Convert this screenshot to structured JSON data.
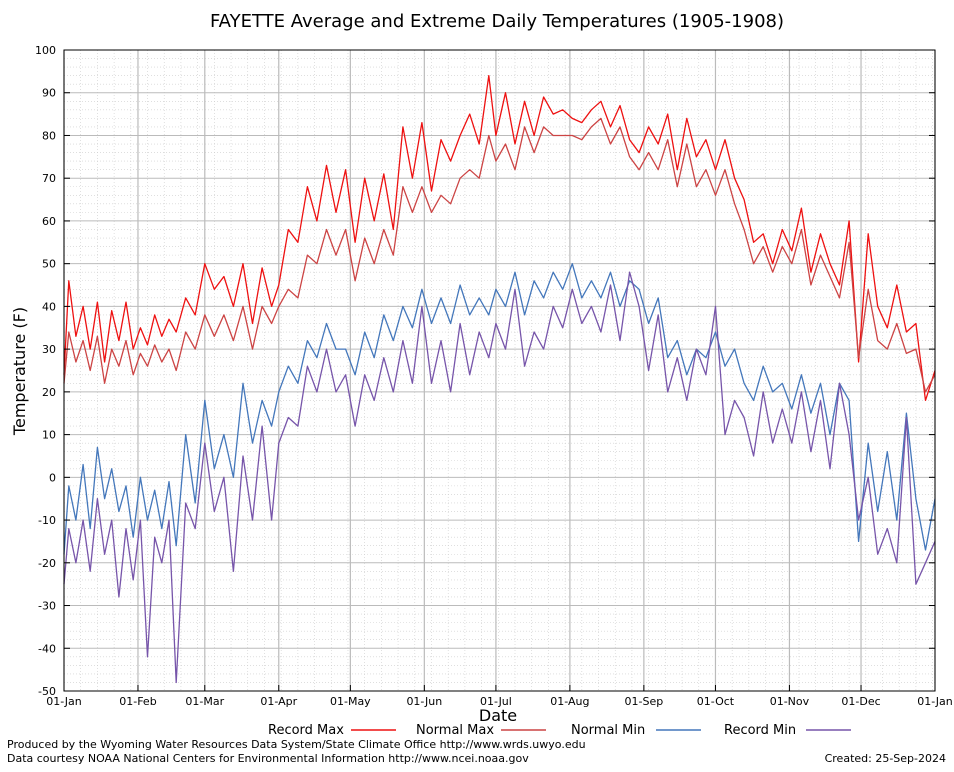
{
  "chart_data": {
    "type": "line",
    "title": "FAYETTE Average and Extreme Daily Temperatures (1905-1908)",
    "xlabel": "Date",
    "ylabel": "Temperature (F)",
    "ylim": [
      -50,
      100
    ],
    "yticks": [
      -50,
      -40,
      -30,
      -20,
      -10,
      0,
      10,
      20,
      30,
      40,
      50,
      60,
      70,
      80,
      90,
      100
    ],
    "xlim": [
      1,
      366
    ],
    "xticks": [
      {
        "day": 1,
        "label": "01-Jan"
      },
      {
        "day": 32,
        "label": "01-Feb"
      },
      {
        "day": 60,
        "label": "01-Mar"
      },
      {
        "day": 91,
        "label": "01-Apr"
      },
      {
        "day": 121,
        "label": "01-May"
      },
      {
        "day": 152,
        "label": "01-Jun"
      },
      {
        "day": 182,
        "label": "01-Jul"
      },
      {
        "day": 213,
        "label": "01-Aug"
      },
      {
        "day": 244,
        "label": "01-Sep"
      },
      {
        "day": 274,
        "label": "01-Oct"
      },
      {
        "day": 305,
        "label": "01-Nov"
      },
      {
        "day": 335,
        "label": "01-Dec"
      },
      {
        "day": 366,
        "label": "01-Jan"
      }
    ],
    "grid": true,
    "legend_position": "bottom",
    "series": [
      {
        "name": "Record Max",
        "color": "#ee1111",
        "x": [
          1,
          3,
          6,
          9,
          12,
          15,
          18,
          21,
          24,
          27,
          30,
          33,
          36,
          39,
          42,
          45,
          48,
          52,
          56,
          60,
          64,
          68,
          72,
          76,
          80,
          84,
          88,
          91,
          95,
          99,
          103,
          107,
          111,
          115,
          119,
          123,
          127,
          131,
          135,
          139,
          143,
          147,
          151,
          155,
          159,
          163,
          167,
          171,
          175,
          179,
          182,
          186,
          190,
          194,
          198,
          202,
          206,
          210,
          214,
          218,
          222,
          226,
          230,
          234,
          238,
          242,
          246,
          250,
          254,
          258,
          262,
          266,
          270,
          274,
          278,
          282,
          286,
          290,
          294,
          298,
          302,
          306,
          310,
          314,
          318,
          322,
          326,
          330,
          334,
          338,
          342,
          346,
          350,
          354,
          358,
          362,
          366
        ],
        "y": [
          24,
          46,
          33,
          40,
          30,
          41,
          27,
          39,
          32,
          41,
          30,
          35,
          31,
          38,
          33,
          37,
          34,
          42,
          38,
          50,
          44,
          47,
          40,
          50,
          36,
          49,
          40,
          45,
          58,
          55,
          68,
          60,
          73,
          62,
          72,
          55,
          70,
          60,
          71,
          58,
          82,
          70,
          83,
          67,
          79,
          74,
          80,
          85,
          78,
          94,
          80,
          90,
          78,
          88,
          80,
          89,
          85,
          86,
          84,
          83,
          86,
          88,
          82,
          87,
          79,
          76,
          82,
          78,
          85,
          72,
          84,
          75,
          79,
          72,
          79,
          70,
          65,
          55,
          57,
          50,
          58,
          53,
          63,
          48,
          57,
          50,
          45,
          60,
          27,
          57,
          40,
          35,
          45,
          34,
          36,
          18,
          25
        ]
      },
      {
        "name": "Normal Max",
        "color": "#cc4444",
        "x": [
          1,
          3,
          6,
          9,
          12,
          15,
          18,
          21,
          24,
          27,
          30,
          33,
          36,
          39,
          42,
          45,
          48,
          52,
          56,
          60,
          64,
          68,
          72,
          76,
          80,
          84,
          88,
          91,
          95,
          99,
          103,
          107,
          111,
          115,
          119,
          123,
          127,
          131,
          135,
          139,
          143,
          147,
          151,
          155,
          159,
          163,
          167,
          171,
          175,
          179,
          182,
          186,
          190,
          194,
          198,
          202,
          206,
          210,
          214,
          218,
          222,
          226,
          230,
          234,
          238,
          242,
          246,
          250,
          254,
          258,
          262,
          266,
          270,
          274,
          278,
          282,
          286,
          290,
          294,
          298,
          302,
          306,
          310,
          314,
          318,
          322,
          326,
          330,
          334,
          338,
          342,
          346,
          350,
          354,
          358,
          362,
          366
        ],
        "y": [
          22,
          34,
          27,
          32,
          25,
          33,
          22,
          30,
          26,
          32,
          24,
          29,
          26,
          31,
          27,
          30,
          25,
          34,
          30,
          38,
          33,
          38,
          32,
          40,
          30,
          40,
          36,
          40,
          44,
          42,
          52,
          50,
          58,
          52,
          58,
          46,
          56,
          50,
          58,
          52,
          68,
          62,
          68,
          62,
          66,
          64,
          70,
          72,
          70,
          80,
          74,
          78,
          72,
          82,
          76,
          82,
          80,
          80,
          80,
          79,
          82,
          84,
          78,
          82,
          75,
          72,
          76,
          72,
          79,
          68,
          78,
          68,
          72,
          66,
          72,
          64,
          58,
          50,
          54,
          48,
          54,
          50,
          58,
          45,
          52,
          47,
          42,
          55,
          28,
          44,
          32,
          30,
          36,
          29,
          30,
          20,
          24
        ]
      },
      {
        "name": "Normal Min",
        "color": "#4477bb",
        "x": [
          1,
          3,
          6,
          9,
          12,
          15,
          18,
          21,
          24,
          27,
          30,
          33,
          36,
          39,
          42,
          45,
          48,
          52,
          56,
          60,
          64,
          68,
          72,
          76,
          80,
          84,
          88,
          91,
          95,
          99,
          103,
          107,
          111,
          115,
          119,
          123,
          127,
          131,
          135,
          139,
          143,
          147,
          151,
          155,
          159,
          163,
          167,
          171,
          175,
          179,
          182,
          186,
          190,
          194,
          198,
          202,
          206,
          210,
          214,
          218,
          222,
          226,
          230,
          234,
          238,
          242,
          246,
          250,
          254,
          258,
          262,
          266,
          270,
          274,
          278,
          282,
          286,
          290,
          294,
          298,
          302,
          306,
          310,
          314,
          318,
          322,
          326,
          330,
          334,
          338,
          342,
          346,
          350,
          354,
          358,
          362,
          366
        ],
        "y": [
          -18,
          -2,
          -10,
          3,
          -12,
          7,
          -5,
          2,
          -8,
          -2,
          -14,
          0,
          -10,
          -3,
          -12,
          -1,
          -16,
          10,
          -6,
          18,
          2,
          10,
          0,
          22,
          8,
          18,
          12,
          20,
          26,
          22,
          32,
          28,
          36,
          30,
          30,
          24,
          34,
          28,
          38,
          32,
          40,
          35,
          44,
          36,
          42,
          36,
          45,
          38,
          42,
          38,
          44,
          40,
          48,
          38,
          46,
          42,
          48,
          44,
          50,
          42,
          46,
          42,
          48,
          40,
          46,
          44,
          36,
          42,
          28,
          32,
          24,
          30,
          28,
          34,
          26,
          30,
          22,
          18,
          26,
          20,
          22,
          16,
          24,
          15,
          22,
          10,
          22,
          18,
          -15,
          8,
          -8,
          6,
          -10,
          15,
          -5,
          -17,
          -5
        ]
      },
      {
        "name": "Record Min",
        "color": "#7755aa",
        "x": [
          1,
          3,
          6,
          9,
          12,
          15,
          18,
          21,
          24,
          27,
          30,
          33,
          36,
          39,
          42,
          45,
          48,
          52,
          56,
          60,
          64,
          68,
          72,
          76,
          80,
          84,
          88,
          91,
          95,
          99,
          103,
          107,
          111,
          115,
          119,
          123,
          127,
          131,
          135,
          139,
          143,
          147,
          151,
          155,
          159,
          163,
          167,
          171,
          175,
          179,
          182,
          186,
          190,
          194,
          198,
          202,
          206,
          210,
          214,
          218,
          222,
          226,
          230,
          234,
          238,
          242,
          246,
          250,
          254,
          258,
          262,
          266,
          270,
          274,
          278,
          282,
          286,
          290,
          294,
          298,
          302,
          306,
          310,
          314,
          318,
          322,
          326,
          330,
          334,
          338,
          342,
          346,
          350,
          354,
          358,
          362,
          366
        ],
        "y": [
          -25,
          -12,
          -20,
          -10,
          -22,
          -5,
          -18,
          -10,
          -28,
          -12,
          -24,
          -10,
          -42,
          -14,
          -20,
          -10,
          -48,
          -6,
          -12,
          8,
          -8,
          0,
          -22,
          5,
          -10,
          12,
          -10,
          8,
          14,
          12,
          26,
          20,
          30,
          20,
          24,
          12,
          24,
          18,
          28,
          20,
          32,
          22,
          40,
          22,
          32,
          20,
          36,
          24,
          34,
          28,
          36,
          30,
          44,
          26,
          34,
          30,
          40,
          35,
          44,
          36,
          40,
          34,
          45,
          32,
          48,
          40,
          25,
          38,
          20,
          28,
          18,
          30,
          24,
          40,
          10,
          18,
          14,
          5,
          20,
          8,
          16,
          8,
          20,
          6,
          18,
          2,
          22,
          10,
          -10,
          0,
          -18,
          -12,
          -20,
          14,
          -25,
          -20,
          -15
        ]
      }
    ]
  },
  "legend": [
    {
      "label": "Record Max",
      "color": "#ee1111"
    },
    {
      "label": "Normal Max",
      "color": "#cc4444"
    },
    {
      "label": "Normal Min",
      "color": "#4477bb"
    },
    {
      "label": "Record Min",
      "color": "#7755aa"
    }
  ],
  "footer": {
    "produced_by": "Produced by the Wyoming Water Resources Data System/State Climate Office http://www.wrds.uwyo.edu",
    "courtesy": "Data courtesy NOAA National Centers for Environmental Information http://www.ncei.noaa.gov",
    "created": "Created:  25-Sep-2024"
  },
  "colors": {
    "major_grid": "#bbbbbb",
    "minor_grid": "#cccccc",
    "axis": "#000000"
  }
}
